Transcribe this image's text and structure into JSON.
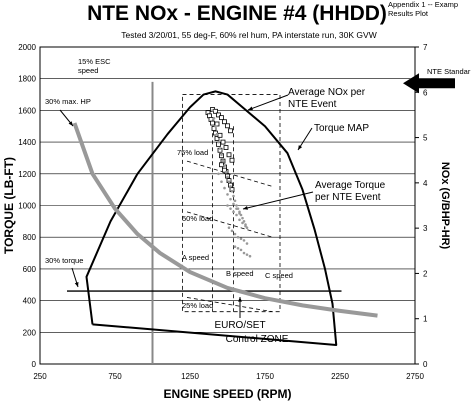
{
  "header": {
    "corner_note_line1": "Appendix 1 -- Examp",
    "corner_note_line2": "Results Plot"
  },
  "chart_data": {
    "type": "scatter",
    "title": "NTE NOx - ENGINE #4 (HHDD)",
    "subtitle": "Tested 3/20/01, 55 deg-F, 60% rel hum, PA interstate run, 30K GVW",
    "xlabel": "ENGINE SPEED (RPM)",
    "ylabel": "TORQUE (LB-FT)",
    "y2label": "NOx (G/BHP-HR)",
    "xlim": [
      250,
      2750
    ],
    "ylim": [
      0,
      2000
    ],
    "y2lim": [
      0,
      7
    ],
    "x_ticks": [
      "250",
      "750",
      "1250",
      "1750",
      "2250",
      "2750"
    ],
    "y_ticks": [
      "0",
      "200",
      "400",
      "600",
      "800",
      "1000",
      "1200",
      "1400",
      "1600",
      "1800",
      "2000"
    ],
    "y2_ticks": [
      "0",
      "1",
      "2",
      "3",
      "4",
      "5",
      "6",
      "7"
    ],
    "grid": "horizontal",
    "series": [
      {
        "name": "Torque MAP",
        "type": "line",
        "color": "#000000",
        "x": [
          600,
          560,
          720,
          900,
          1100,
          1250,
          1340,
          1420,
          1500,
          1600,
          1750,
          1900,
          2000,
          2080,
          2150,
          2200,
          2225,
          600
        ],
        "y": [
          250,
          550,
          900,
          1200,
          1450,
          1620,
          1700,
          1720,
          1700,
          1620,
          1500,
          1330,
          1100,
          850,
          600,
          380,
          120,
          250
        ]
      },
      {
        "name": "30% max. HP",
        "type": "line",
        "color": "#999999",
        "x": [
          480,
          600,
          750,
          900,
          1050,
          1250,
          1500,
          1750,
          2000,
          2250,
          2500
        ],
        "y": [
          1520,
          1200,
          980,
          820,
          700,
          580,
          480,
          415,
          370,
          335,
          305
        ]
      },
      {
        "name": "Average NOx per NTE Event",
        "type": "scatter",
        "color": "#000000",
        "marker": "square",
        "x": [
          1370,
          1380,
          1390,
          1400,
          1410,
          1420,
          1430,
          1440,
          1450,
          1460,
          1470,
          1480,
          1490,
          1500,
          1510,
          1520,
          1530,
          1400,
          1420,
          1440,
          1460,
          1480,
          1500,
          1520,
          1430,
          1450,
          1470,
          1490,
          1510,
          1530,
          1460,
          1480
        ],
        "y": [
          5.55,
          5.48,
          5.4,
          5.32,
          5.2,
          5.1,
          4.98,
          4.85,
          4.72,
          4.6,
          4.48,
          4.35,
          4.25,
          4.15,
          4.05,
          3.95,
          3.85,
          5.62,
          5.58,
          5.5,
          5.44,
          5.35,
          5.26,
          5.15,
          5.3,
          5.05,
          4.9,
          4.78,
          4.62,
          4.5,
          4.4,
          4.28
        ]
      },
      {
        "name": "Average Torque per NTE Event",
        "type": "scatter",
        "color": "#999999",
        "marker": "dot",
        "x": [
          1400,
          1410,
          1420,
          1430,
          1440,
          1450,
          1460,
          1470,
          1480,
          1490,
          1500,
          1510,
          1520,
          1530,
          1540,
          1550,
          1560,
          1570,
          1580,
          1590,
          1440,
          1460,
          1480,
          1500,
          1520,
          1540,
          1560,
          1580,
          1600,
          1610,
          1620,
          1630,
          1500,
          1520,
          1540,
          1560,
          1580,
          1600,
          1620,
          1510,
          1530,
          1550,
          1570,
          1590,
          1610,
          1630,
          1550,
          1570,
          1590,
          1610,
          1630,
          1650
        ],
        "y": [
          1600,
          1550,
          1500,
          1450,
          1400,
          1360,
          1320,
          1280,
          1250,
          1210,
          1180,
          1150,
          1120,
          1090,
          1060,
          1030,
          1000,
          980,
          960,
          940,
          1200,
          1150,
          1110,
          1070,
          1040,
          1010,
          980,
          950,
          920,
          900,
          880,
          860,
          1000,
          980,
          960,
          940,
          910,
          890,
          870,
          860,
          840,
          820,
          800,
          790,
          780,
          760,
          740,
          730,
          720,
          700,
          690,
          680
        ]
      }
    ],
    "annotations": [
      {
        "text": "15% ESC",
        "text2": "speed"
      },
      {
        "text": "30% max. HP"
      },
      {
        "text": "75% load"
      },
      {
        "text": "50% load"
      },
      {
        "text": "30% torque"
      },
      {
        "text": "A speed"
      },
      {
        "text": "B speed"
      },
      {
        "text": "C speed"
      },
      {
        "text": "25% load"
      },
      {
        "text": "Average NOx per",
        "text2": "NTE Event"
      },
      {
        "text": "Torque MAP"
      },
      {
        "text": "Average Torque",
        "text2": "per NTE Event"
      },
      {
        "text": "EURO/SET",
        "text2": "Control ZONE"
      },
      {
        "text": "NTE Standar"
      }
    ],
    "reference_lines": {
      "esc_15_speed": 1000,
      "torque_30pct": 460,
      "nte_standard_nox": 6.2,
      "control_zone": {
        "x": [
          1200,
          1850
        ],
        "y": [
          330,
          1700
        ]
      }
    }
  }
}
